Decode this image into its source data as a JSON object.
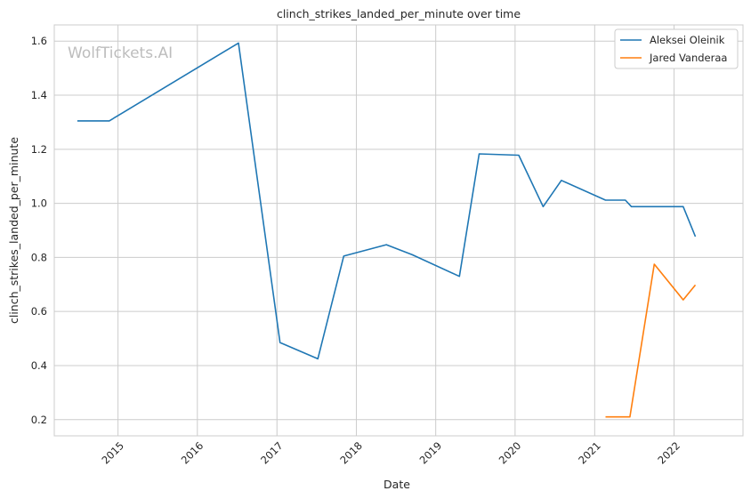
{
  "chart_data": {
    "type": "line",
    "title": "clinch_strikes_landed_per_minute over time",
    "xlabel": "Date",
    "ylabel": "clinch_strikes_landed_per_minute",
    "watermark": "WolfTickets.AI",
    "x_ticks": [
      "2015",
      "2016",
      "2017",
      "2018",
      "2019",
      "2020",
      "2021",
      "2022"
    ],
    "y_ticks": [
      "0.2",
      "0.4",
      "0.6",
      "0.8",
      "1.0",
      "1.2",
      "1.4",
      "1.6"
    ],
    "xlim": [
      "2014-03-14",
      "2022-11-14"
    ],
    "ylim": [
      0.14,
      1.66
    ],
    "grid": true,
    "legend_position": "top-right",
    "series": [
      {
        "name": "Aleksei Oleinik",
        "color": "#1f77b4",
        "points": [
          [
            "2014-06-28",
            1.305
          ],
          [
            "2014-11-22",
            1.305
          ],
          [
            "2016-07-08",
            1.593
          ],
          [
            "2017-01-15",
            0.485
          ],
          [
            "2017-07-08",
            0.425
          ],
          [
            "2017-11-04",
            0.805
          ],
          [
            "2018-05-19",
            0.847
          ],
          [
            "2018-09-15",
            0.81
          ],
          [
            "2019-04-20",
            0.73
          ],
          [
            "2019-07-20",
            1.183
          ],
          [
            "2020-01-18",
            1.178
          ],
          [
            "2020-05-09",
            0.988
          ],
          [
            "2020-08-01",
            1.085
          ],
          [
            "2021-02-20",
            1.012
          ],
          [
            "2021-05-22",
            1.012
          ],
          [
            "2021-06-19",
            0.988
          ],
          [
            "2022-02-12",
            0.988
          ],
          [
            "2022-04-09",
            0.877
          ]
        ]
      },
      {
        "name": "Jared Vanderaa",
        "color": "#ff7f0e",
        "points": [
          [
            "2021-02-20",
            0.21
          ],
          [
            "2021-06-12",
            0.21
          ],
          [
            "2021-10-02",
            0.775
          ],
          [
            "2022-02-12",
            0.643
          ],
          [
            "2022-04-09",
            0.698
          ]
        ]
      }
    ]
  }
}
